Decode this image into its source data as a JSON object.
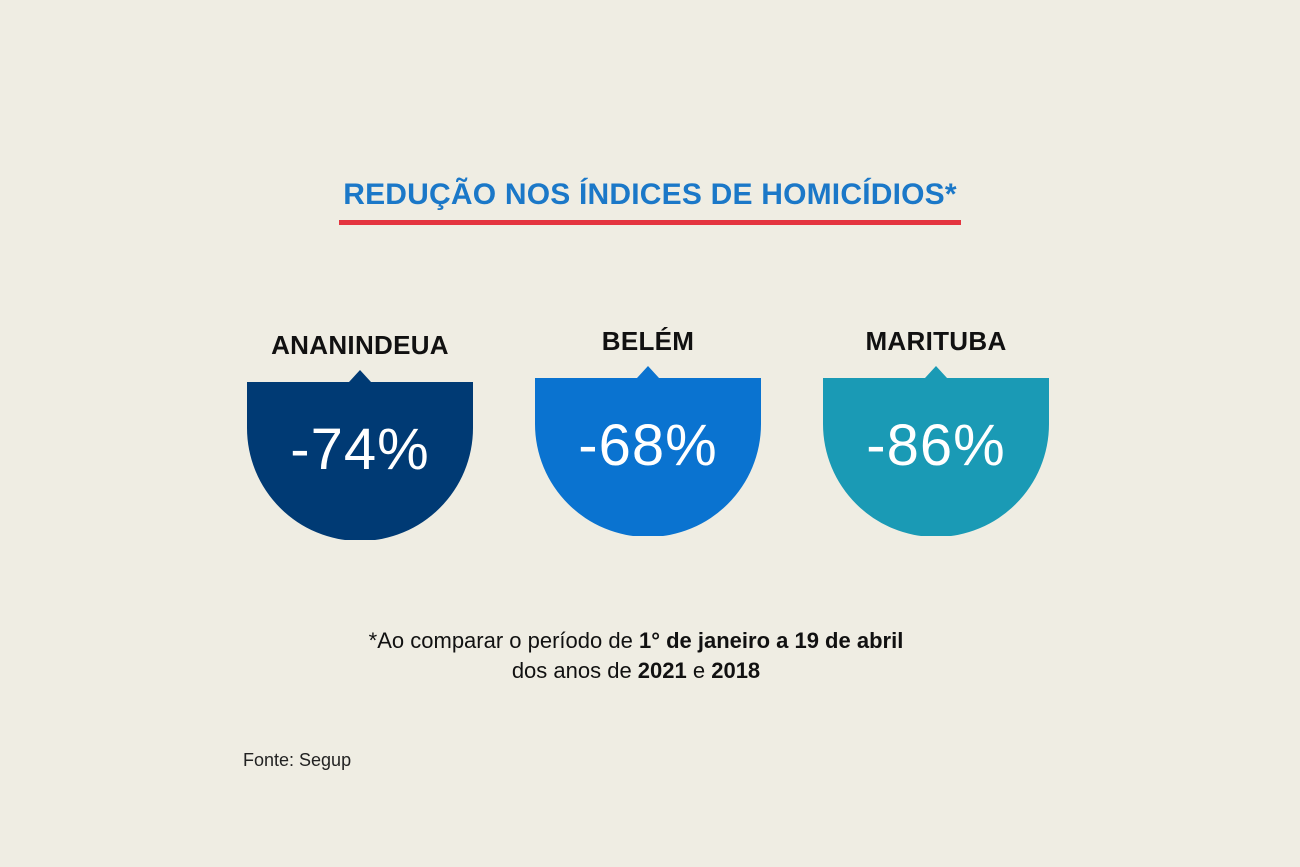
{
  "title": "REDUÇÃO NOS ÍNDICES DE HOMICÍDIOS*",
  "colors": {
    "background": "#efede3",
    "title": "#1b78c8",
    "underline": "#e4343f"
  },
  "cards": [
    {
      "city": "ANANINDEUA",
      "value": "-74%",
      "color": "#003a74"
    },
    {
      "city": "BELÉM",
      "value": "-68%",
      "color": "#0a73d0"
    },
    {
      "city": "MARITUBA",
      "value": "-86%",
      "color": "#1a9ab5"
    }
  ],
  "footnote": {
    "line1_prefix": "*Ao comparar o período de ",
    "line1_bold": "1° de janeiro a 19 de abril",
    "line2_prefix": "dos anos de ",
    "line2_bold_a": "2021",
    "line2_mid": " e ",
    "line2_bold_b": "2018"
  },
  "source": "Fonte: Segup"
}
